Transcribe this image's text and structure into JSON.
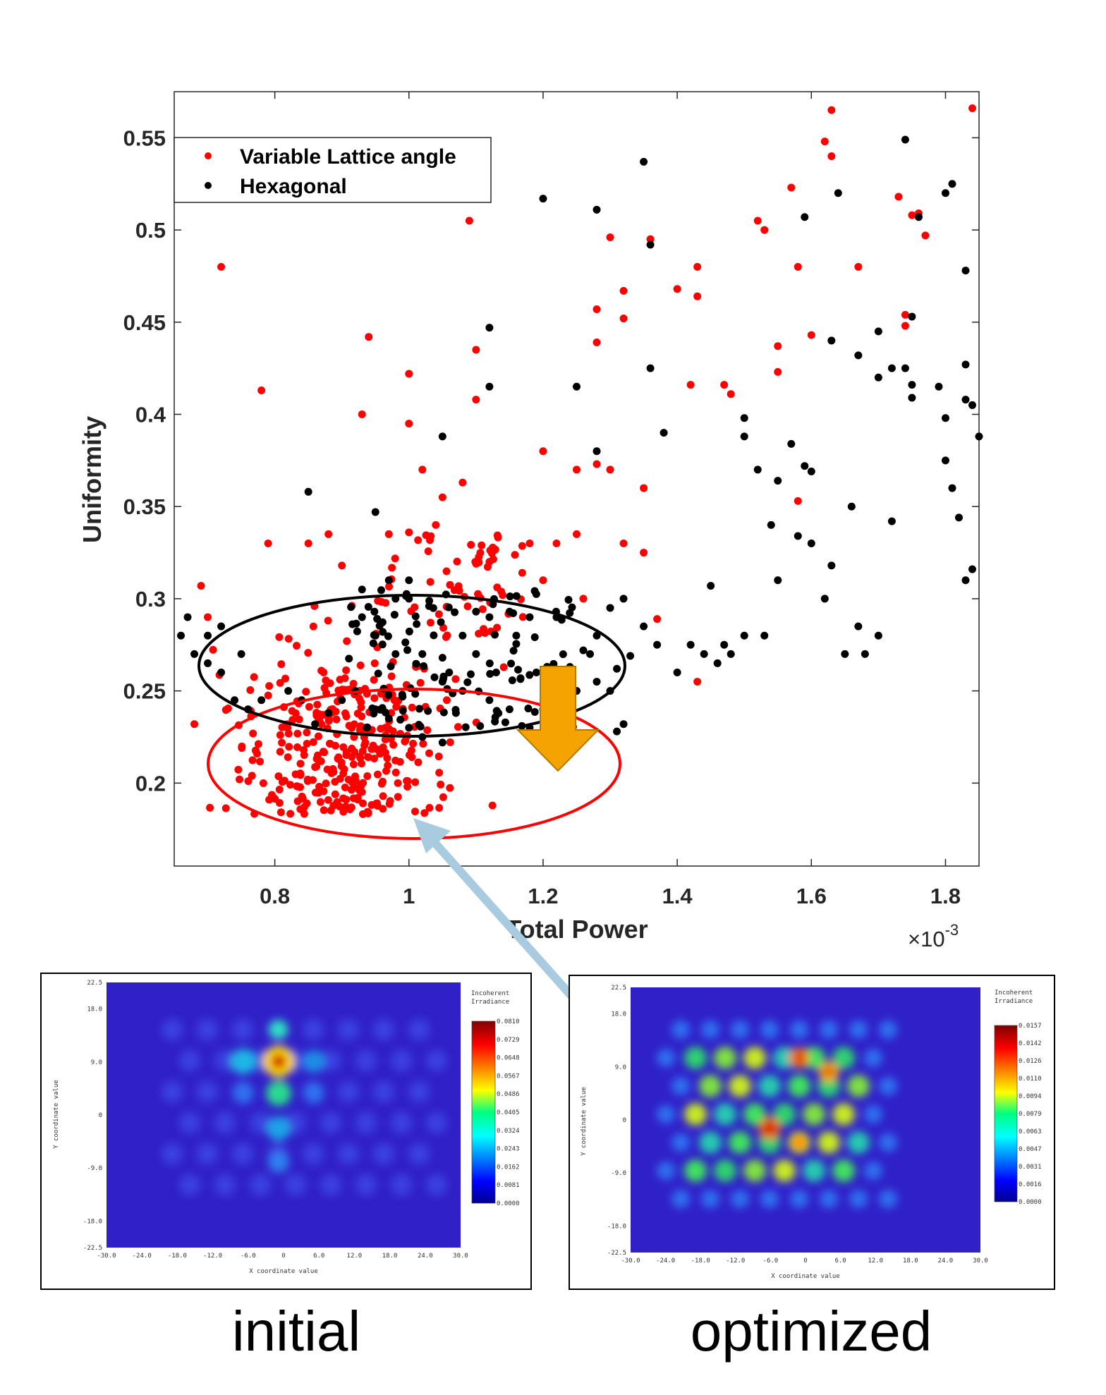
{
  "chart_data": [
    {
      "type": "scatter",
      "xlabel": "Total Power",
      "ylabel": "Uniformity",
      "x_multiplier": "×10",
      "x_multiplier_exponent": "-3",
      "xlim": [
        0.65,
        1.85
      ],
      "ylim": [
        0.155,
        0.575
      ],
      "x_ticks": [
        0.8,
        1.0,
        1.2,
        1.4,
        1.6,
        1.8
      ],
      "x_tick_labels": [
        "0.8",
        "1",
        "1.2",
        "1.4",
        "1.6",
        "1.8"
      ],
      "y_ticks": [
        0.2,
        0.25,
        0.3,
        0.35,
        0.4,
        0.45,
        0.5,
        0.55
      ],
      "y_tick_labels": [
        "0.2",
        "0.25",
        "0.3",
        "0.35",
        "0.4",
        "0.45",
        "0.5",
        "0.55"
      ],
      "grid": false,
      "legend_position": "top-left",
      "series": [
        {
          "name": "Variable Lattice angle",
          "color": "#ff0000",
          "points": [
            [
              0.72,
              0.48
            ],
            [
              0.78,
              0.413
            ],
            [
              0.93,
              0.4
            ],
            [
              0.94,
              0.442
            ],
            [
              1.09,
              0.505
            ],
            [
              1.1,
              0.435
            ],
            [
              1.1,
              0.408
            ],
            [
              1.0,
              0.422
            ],
            [
              1.0,
              0.395
            ],
            [
              1.2,
              0.38
            ],
            [
              1.3,
              0.496
            ],
            [
              1.36,
              0.495
            ],
            [
              1.32,
              0.467
            ],
            [
              1.32,
              0.452
            ],
            [
              1.43,
              0.48
            ],
            [
              1.43,
              0.464
            ],
            [
              1.4,
              0.468
            ],
            [
              1.57,
              0.523
            ],
            [
              1.52,
              0.505
            ],
            [
              1.53,
              0.5
            ],
            [
              1.6,
              0.443
            ],
            [
              1.58,
              0.48
            ],
            [
              1.63,
              0.565
            ],
            [
              1.62,
              0.548
            ],
            [
              1.63,
              0.54
            ],
            [
              1.67,
              0.48
            ],
            [
              1.73,
              0.518
            ],
            [
              1.75,
              0.508
            ],
            [
              1.76,
              0.509
            ],
            [
              1.77,
              0.497
            ],
            [
              1.84,
              0.566
            ],
            [
              1.74,
              0.454
            ],
            [
              1.74,
              0.448
            ],
            [
              1.55,
              0.437
            ],
            [
              1.55,
              0.423
            ],
            [
              1.42,
              0.416
            ],
            [
              1.47,
              0.416
            ],
            [
              1.48,
              0.411
            ],
            [
              1.28,
              0.457
            ],
            [
              1.28,
              0.439
            ],
            [
              1.25,
              0.37
            ],
            [
              1.28,
              0.373
            ],
            [
              1.3,
              0.37
            ],
            [
              1.35,
              0.36
            ],
            [
              1.22,
              0.33
            ],
            [
              1.25,
              0.335
            ],
            [
              1.32,
              0.33
            ],
            [
              1.35,
              0.325
            ],
            [
              1.37,
              0.289
            ],
            [
              1.43,
              0.255
            ],
            [
              1.58,
              0.353
            ],
            [
              0.7,
              0.29
            ],
            [
              0.69,
              0.307
            ],
            [
              0.68,
              0.232
            ],
            [
              0.79,
              0.33
            ],
            [
              0.85,
              0.33
            ],
            [
              0.88,
              0.335
            ],
            [
              0.9,
              0.318
            ],
            [
              0.97,
              0.335
            ],
            [
              1.0,
              0.336
            ],
            [
              1.04,
              0.34
            ],
            [
              1.05,
              0.355
            ],
            [
              1.02,
              0.37
            ],
            [
              1.08,
              0.363
            ],
            [
              1.12,
              0.32
            ],
            [
              1.18,
              0.33
            ],
            [
              1.2,
              0.31
            ],
            [
              1.26,
              0.3
            ]
          ]
        },
        {
          "name": "Hexagonal",
          "color": "#000000",
          "points": [
            [
              0.85,
              0.358
            ],
            [
              0.95,
              0.347
            ],
            [
              1.05,
              0.388
            ],
            [
              1.12,
              0.447
            ],
            [
              1.12,
              0.415
            ],
            [
              1.2,
              0.517
            ],
            [
              1.28,
              0.511
            ],
            [
              1.35,
              0.537
            ],
            [
              1.36,
              0.492
            ],
            [
              1.28,
              0.38
            ],
            [
              1.36,
              0.425
            ],
            [
              1.25,
              0.415
            ],
            [
              1.38,
              0.39
            ],
            [
              1.5,
              0.398
            ],
            [
              1.5,
              0.388
            ],
            [
              1.52,
              0.37
            ],
            [
              1.55,
              0.364
            ],
            [
              1.57,
              0.384
            ],
            [
              1.59,
              0.372
            ],
            [
              1.6,
              0.369
            ],
            [
              1.63,
              0.44
            ],
            [
              1.67,
              0.432
            ],
            [
              1.7,
              0.42
            ],
            [
              1.74,
              0.425
            ],
            [
              1.75,
              0.416
            ],
            [
              1.75,
              0.409
            ],
            [
              1.72,
              0.425
            ],
            [
              1.66,
              0.35
            ],
            [
              1.72,
              0.342
            ],
            [
              1.79,
              0.415
            ],
            [
              1.8,
              0.398
            ],
            [
              1.8,
              0.375
            ],
            [
              1.81,
              0.36
            ],
            [
              1.82,
              0.344
            ],
            [
              1.83,
              0.31
            ],
            [
              1.84,
              0.316
            ],
            [
              1.85,
              0.388
            ],
            [
              1.83,
              0.427
            ],
            [
              1.83,
              0.408
            ],
            [
              1.84,
              0.405
            ],
            [
              1.83,
              0.478
            ],
            [
              1.8,
              0.52
            ],
            [
              1.81,
              0.525
            ],
            [
              1.74,
              0.549
            ],
            [
              1.76,
              0.507
            ],
            [
              1.64,
              0.52
            ],
            [
              1.59,
              0.507
            ],
            [
              1.75,
              0.453
            ],
            [
              1.7,
              0.445
            ],
            [
              1.45,
              0.307
            ],
            [
              1.47,
              0.275
            ],
            [
              1.5,
              0.28
            ],
            [
              1.48,
              0.27
            ],
            [
              1.53,
              0.28
            ],
            [
              1.55,
              0.31
            ],
            [
              1.54,
              0.34
            ],
            [
              1.58,
              0.334
            ],
            [
              1.6,
              0.33
            ],
            [
              1.62,
              0.3
            ],
            [
              1.63,
              0.318
            ],
            [
              1.65,
              0.27
            ],
            [
              1.67,
              0.285
            ],
            [
              1.68,
              0.27
            ],
            [
              1.7,
              0.28
            ],
            [
              1.4,
              0.26
            ],
            [
              1.42,
              0.275
            ],
            [
              1.44,
              0.27
            ],
            [
              1.46,
              0.265
            ],
            [
              1.37,
              0.275
            ],
            [
              1.35,
              0.285
            ],
            [
              1.32,
              0.3
            ],
            [
              1.3,
              0.295
            ],
            [
              1.28,
              0.28
            ],
            [
              1.31,
              0.262
            ],
            [
              1.33,
              0.269
            ],
            [
              1.26,
              0.272
            ],
            [
              1.22,
              0.29
            ],
            [
              1.18,
              0.29
            ],
            [
              1.15,
              0.293
            ],
            [
              1.12,
              0.29
            ],
            [
              1.08,
              0.28
            ],
            [
              1.05,
              0.268
            ],
            [
              1.02,
              0.27
            ],
            [
              0.98,
              0.27
            ],
            [
              0.95,
              0.28
            ],
            [
              0.93,
              0.29
            ],
            [
              0.97,
              0.31
            ],
            [
              1.0,
              0.3
            ],
            [
              1.03,
              0.296
            ],
            [
              1.1,
              0.293
            ],
            [
              1.05,
              0.255
            ],
            [
              1.08,
              0.25
            ],
            [
              1.12,
              0.245
            ],
            [
              1.15,
              0.24
            ],
            [
              1.18,
              0.23
            ],
            [
              1.2,
              0.24
            ],
            [
              1.22,
              0.245
            ],
            [
              1.25,
              0.25
            ],
            [
              1.28,
              0.255
            ],
            [
              1.3,
              0.25
            ],
            [
              1.32,
              0.232
            ],
            [
              1.31,
              0.228
            ],
            [
              0.92,
              0.25
            ],
            [
              0.9,
              0.245
            ],
            [
              0.88,
              0.238
            ],
            [
              0.86,
              0.232
            ],
            [
              0.84,
              0.245
            ],
            [
              0.82,
              0.25
            ],
            [
              0.78,
              0.245
            ],
            [
              0.76,
              0.24
            ],
            [
              0.74,
              0.245
            ],
            [
              0.72,
              0.26
            ],
            [
              0.7,
              0.265
            ],
            [
              0.68,
              0.27
            ],
            [
              0.7,
              0.28
            ],
            [
              0.72,
              0.285
            ],
            [
              0.67,
              0.29
            ],
            [
              0.66,
              0.28
            ],
            [
              0.75,
              0.27
            ],
            [
              0.95,
              0.24
            ],
            [
              0.97,
              0.235
            ],
            [
              1.0,
              0.23
            ],
            [
              1.02,
              0.225
            ],
            [
              1.05,
              0.222
            ],
            [
              1.07,
              0.238
            ],
            [
              0.99,
              0.248
            ],
            [
              1.06,
              0.26
            ],
            [
              1.1,
              0.27
            ],
            [
              1.13,
              0.26
            ],
            [
              1.16,
              0.28
            ],
            [
              1.19,
              0.26
            ],
            [
              1.24,
              0.263
            ],
            [
              1.27,
              0.27
            ],
            [
              0.98,
              0.3
            ],
            [
              1.0,
              0.31
            ],
            [
              0.93,
              0.305
            ]
          ]
        }
      ],
      "annotations": [
        {
          "type": "ellipse",
          "color": "#000000",
          "description": "black ellipse around hexagonal cluster"
        },
        {
          "type": "ellipse",
          "color": "#ff0000",
          "description": "red ellipse around variable lattice cluster"
        },
        {
          "type": "arrow",
          "color": "#f5a300"
        },
        {
          "type": "double-arrow",
          "color": "#a9cbe0"
        }
      ]
    }
  ],
  "insets": {
    "left": {
      "caption": "initial",
      "legend_title_1": "Incoherent",
      "legend_title_2": "Irradiance",
      "legend_values": [
        "0.0810",
        "0.0729",
        "0.0648",
        "0.0567",
        "0.0486",
        "0.0405",
        "0.0324",
        "0.0243",
        "0.0162",
        "0.0081",
        "0.0000"
      ],
      "x_ticks": [
        "-30.0",
        "-24.0",
        "-18.0",
        "-12.0",
        "-6.0",
        "0",
        "6.0",
        "12.0",
        "18.0",
        "24.0",
        "30.0"
      ],
      "y_ticks": [
        "22.5",
        "18.0",
        "9.0",
        "0",
        "-9.0",
        "-18.0",
        "-22.5"
      ],
      "xlabel": "X coordinate value",
      "ylabel": "Y coordinate value"
    },
    "right": {
      "caption": "optimized",
      "legend_title_1": "Incoherent",
      "legend_title_2": "Irradiance",
      "legend_values": [
        "0.0157",
        "0.0142",
        "0.0126",
        "0.0110",
        "0.0094",
        "0.0079",
        "0.0063",
        "0.0047",
        "0.0031",
        "0.0016",
        "0.0000"
      ],
      "x_ticks": [
        "-30.0",
        "-24.0",
        "-18.0",
        "-12.0",
        "-6.0",
        "0",
        "6.0",
        "12.0",
        "18.0",
        "24.0",
        "30.0"
      ],
      "y_ticks": [
        "22.5",
        "18.0",
        "9.0",
        "0",
        "-9.0",
        "-18.0",
        "-22.5"
      ],
      "xlabel": "X coordinate value",
      "ylabel": "Y coordinate value"
    }
  }
}
